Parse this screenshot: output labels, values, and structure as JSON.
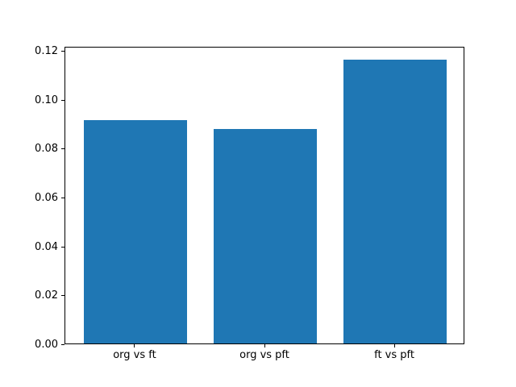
{
  "chart_data": {
    "type": "bar",
    "title": "",
    "categories": [
      "org vs ft",
      "org vs pft",
      "ft vs pft"
    ],
    "values": [
      0.0915,
      0.0878,
      0.1162
    ],
    "bar_color": "#1f77b4",
    "xlabel": "",
    "ylabel": "",
    "ylim": [
      0,
      0.122
    ],
    "yticks": [
      0.0,
      0.02,
      0.04,
      0.06,
      0.08,
      0.1,
      0.12
    ],
    "ytick_labels": [
      "0.00",
      "0.02",
      "0.04",
      "0.06",
      "0.08",
      "0.10",
      "0.12"
    ],
    "bar_width_fraction": 0.8,
    "x_margin_fraction": 0.54,
    "grid": false,
    "legend": null,
    "axis_color": "#000000",
    "background_color": "#ffffff"
  }
}
